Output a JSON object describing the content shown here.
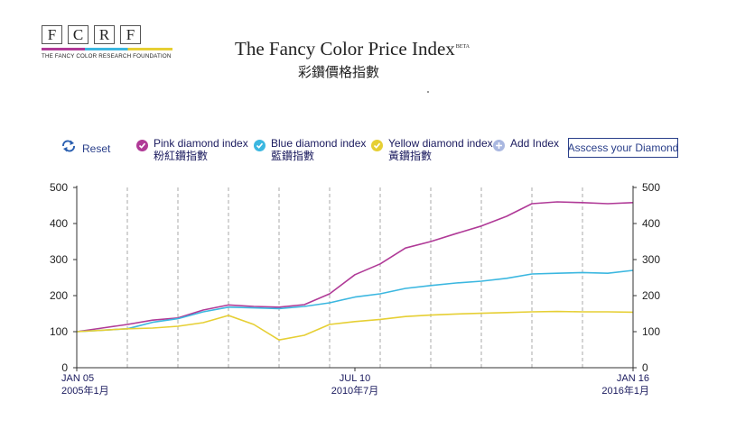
{
  "logo": {
    "letters": [
      "F",
      "C",
      "R",
      "F"
    ],
    "subtitle": "THE FANCY COLOR RESEARCH FOUNDATION"
  },
  "header": {
    "title": "The Fancy Color Price Index",
    "beta": "BETA",
    "title_cn": "彩鑽價格指數"
  },
  "controls": {
    "reset_label": "Reset",
    "add_index_label": "Add Index",
    "assess_label": "Asscess your Diamond"
  },
  "legend": [
    {
      "label": "Pink diamond index",
      "label_cn": "粉紅鑽指數",
      "color": "#b03a97"
    },
    {
      "label": "Blue diamond index",
      "label_cn": "藍鑽指數",
      "color": "#3bb7e0"
    },
    {
      "label": "Yellow diamond index",
      "label_cn": "黃鑽指數",
      "color": "#e6cf34"
    }
  ],
  "colors": {
    "add_index": "#a9b7e0",
    "reset_icon": "#2a5fb0"
  },
  "chart_data": {
    "type": "line",
    "ylim": [
      0,
      500
    ],
    "yticks": [
      0,
      100,
      200,
      300,
      400,
      500
    ],
    "x_range": [
      0,
      11
    ],
    "x_ticks": [
      {
        "x": 0,
        "label": "JAN 05",
        "label_cn": "2005年1月"
      },
      {
        "x": 5.5,
        "label": "JUL 10",
        "label_cn": "2010年7月"
      },
      {
        "x": 11,
        "label": "JAN 16",
        "label_cn": "2016年1月"
      }
    ],
    "gridlines_x": [
      1,
      2,
      3,
      4,
      5,
      6,
      7,
      8,
      9,
      10
    ],
    "series": [
      {
        "name": "Pink diamond index",
        "color": "#b03a97",
        "x": [
          0,
          0.5,
          1,
          1.5,
          2,
          2.5,
          3,
          3.5,
          4,
          4.5,
          5,
          5.5,
          6,
          6.5,
          7,
          7.5,
          8,
          8.5,
          9,
          9.5,
          10,
          10.5,
          11
        ],
        "values": [
          100,
          110,
          120,
          132,
          138,
          160,
          174,
          170,
          168,
          175,
          205,
          258,
          288,
          332,
          350,
          372,
          393,
          420,
          455,
          460,
          458,
          455,
          458
        ]
      },
      {
        "name": "Blue diamond index",
        "color": "#3bb7e0",
        "x": [
          0,
          0.5,
          1,
          1.5,
          2,
          2.5,
          3,
          3.5,
          4,
          4.5,
          5,
          5.5,
          6,
          6.5,
          7,
          7.5,
          8,
          8.5,
          9,
          9.5,
          10,
          10.5,
          11
        ],
        "values": [
          100,
          104,
          108,
          126,
          136,
          155,
          168,
          166,
          164,
          170,
          180,
          196,
          205,
          220,
          228,
          235,
          240,
          248,
          260,
          262,
          264,
          262,
          270
        ]
      },
      {
        "name": "Yellow diamond index",
        "color": "#e6cf34",
        "x": [
          0,
          0.5,
          1,
          1.5,
          2,
          2.5,
          3,
          3.5,
          4,
          4.5,
          5,
          5.5,
          6,
          6.5,
          7,
          7.5,
          8,
          8.5,
          9,
          9.5,
          10,
          10.5,
          11
        ],
        "values": [
          100,
          104,
          108,
          110,
          115,
          125,
          145,
          120,
          77,
          90,
          120,
          128,
          134,
          142,
          146,
          149,
          151,
          153,
          155,
          156,
          155,
          155,
          154
        ]
      }
    ]
  }
}
